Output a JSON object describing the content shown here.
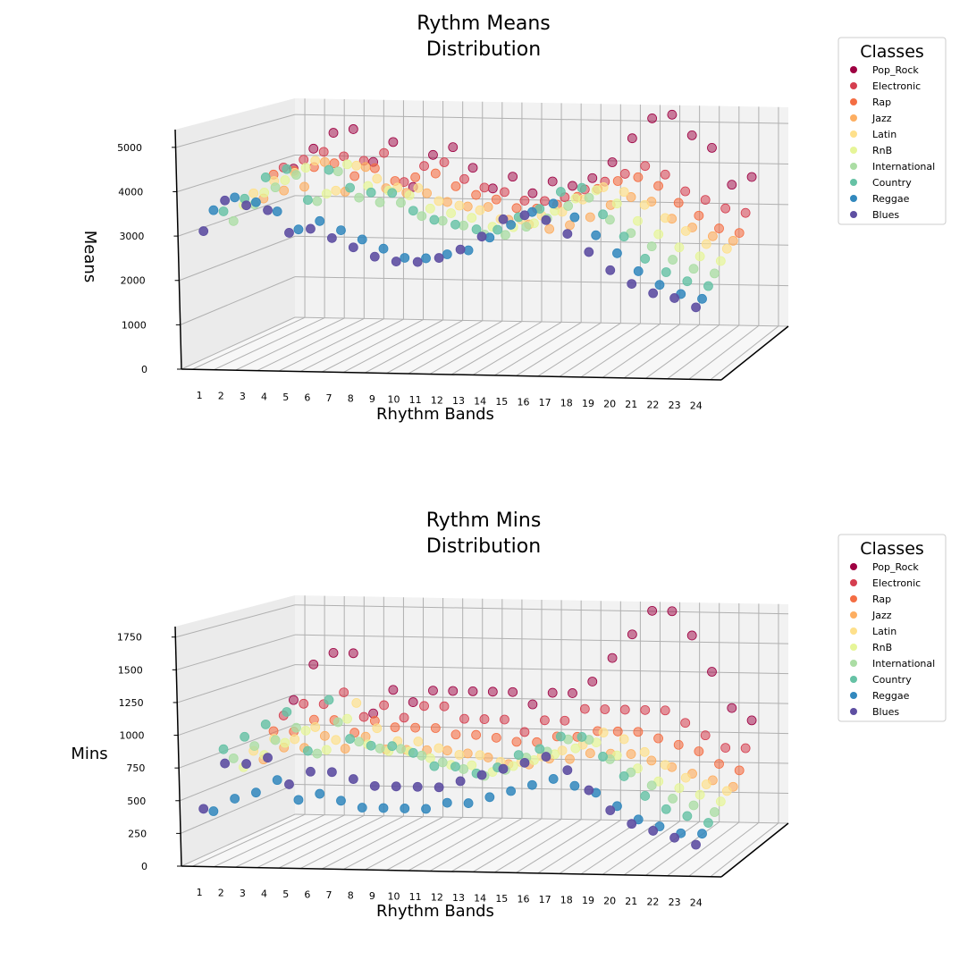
{
  "legend_title": "Classes",
  "classes": [
    {
      "name": "Pop_Rock",
      "color": "#9e0142"
    },
    {
      "name": "Electronic",
      "color": "#d53e4f"
    },
    {
      "name": "Rap",
      "color": "#f46d43"
    },
    {
      "name": "Jazz",
      "color": "#fdae61"
    },
    {
      "name": "Latin",
      "color": "#fee08b"
    },
    {
      "name": "RnB",
      "color": "#e6f598"
    },
    {
      "name": "International",
      "color": "#abdda4"
    },
    {
      "name": "Country",
      "color": "#66c2a5"
    },
    {
      "name": "Reggae",
      "color": "#3288bd"
    },
    {
      "name": "Blues",
      "color": "#5e4fa2"
    }
  ],
  "chart_data": [
    {
      "type": "scatter",
      "projection": "3d",
      "title": "Rythm Means\nDistribution",
      "xlabel": "Rhythm Bands",
      "ylabel": "Means",
      "x_ticks": [
        1,
        2,
        3,
        4,
        5,
        6,
        7,
        8,
        9,
        10,
        11,
        12,
        13,
        14,
        15,
        16,
        17,
        18,
        19,
        20,
        21,
        22,
        23,
        24
      ],
      "z_ticks": [
        0,
        1000,
        2000,
        3000,
        4000,
        5000
      ],
      "zlim": [
        0,
        5400
      ],
      "grid": true,
      "legend_position": "right",
      "series": [
        {
          "name": "Pop_Rock",
          "values": [
            3800,
            4300,
            4700,
            4800,
            4000,
            4500,
            3400,
            4200,
            4400,
            3900,
            3400,
            3700,
            3300,
            3600,
            3500,
            3700,
            4100,
            4700,
            5200,
            5300,
            4800,
            4500,
            3600,
            3800
          ]
        },
        {
          "name": "Electronic",
          "values": [
            3900,
            4100,
            4300,
            4200,
            4100,
            4300,
            3600,
            4000,
            4100,
            3700,
            3500,
            3400,
            3200,
            3200,
            3300,
            3500,
            3700,
            3900,
            4100,
            3900,
            3500,
            3300,
            3100,
            3000
          ]
        },
        {
          "name": "Rap",
          "values": [
            3800,
            3900,
            4000,
            4100,
            3800,
            4000,
            3700,
            3800,
            3900,
            3600,
            3400,
            3300,
            3100,
            3100,
            3200,
            3400,
            3600,
            3800,
            3900,
            3700,
            3300,
            3000,
            2700,
            2600
          ]
        },
        {
          "name": "Jazz",
          "values": [
            3300,
            3500,
            3600,
            4200,
            3500,
            4100,
            3600,
            3500,
            3500,
            3300,
            3200,
            3200,
            2900,
            2800,
            2700,
            2800,
            3000,
            3300,
            3500,
            3400,
            3000,
            2800,
            2600,
            2500
          ]
        },
        {
          "name": "Latin",
          "values": [
            3500,
            3800,
            4000,
            4300,
            3600,
            4200,
            3900,
            3700,
            3700,
            3400,
            3300,
            3200,
            3000,
            3000,
            3100,
            3200,
            3500,
            3800,
            3700,
            3400,
            3100,
            2800,
            2500,
            2400
          ]
        },
        {
          "name": "RnB",
          "values": [
            3300,
            3600,
            3900,
            4200,
            3600,
            4300,
            3800,
            3700,
            3600,
            3300,
            3200,
            3100,
            2900,
            2900,
            3000,
            3300,
            3600,
            3800,
            3500,
            3100,
            2800,
            2500,
            2300,
            2200
          ]
        },
        {
          "name": "International",
          "values": [
            3000,
            3400,
            3800,
            4100,
            3500,
            4200,
            3600,
            3500,
            3500,
            3200,
            3100,
            3000,
            2800,
            2800,
            3000,
            3200,
            3500,
            3700,
            3200,
            2900,
            2600,
            2300,
            2100,
            2000
          ]
        },
        {
          "name": "Country",
          "values": [
            3300,
            3600,
            4100,
            4300,
            3600,
            4300,
            3900,
            3800,
            3800,
            3400,
            3200,
            3100,
            3000,
            3000,
            3300,
            3500,
            3900,
            4000,
            3400,
            2900,
            2400,
            2100,
            1900,
            1800
          ]
        },
        {
          "name": "Reggae",
          "values": [
            3400,
            3700,
            3600,
            3400,
            3000,
            3200,
            3000,
            2800,
            2600,
            2400,
            2400,
            2500,
            2600,
            2900,
            3200,
            3500,
            3700,
            3400,
            3000,
            2600,
            2200,
            1900,
            1700,
            1600
          ]
        },
        {
          "name": "Blues",
          "values": [
            3000,
            3700,
            3600,
            3500,
            3000,
            3100,
            2900,
            2700,
            2500,
            2400,
            2400,
            2500,
            2700,
            3000,
            3400,
            3500,
            3400,
            3100,
            2700,
            2300,
            2000,
            1800,
            1700,
            1500
          ]
        }
      ]
    },
    {
      "type": "scatter",
      "projection": "3d",
      "title": "Rythm Mins\nDistribution",
      "xlabel": "Rhythm Bands",
      "ylabel": "Mins",
      "x_ticks": [
        1,
        2,
        3,
        4,
        5,
        6,
        7,
        8,
        9,
        10,
        11,
        12,
        13,
        14,
        15,
        16,
        17,
        18,
        19,
        20,
        21,
        22,
        23,
        24
      ],
      "z_ticks": [
        0,
        250,
        500,
        750,
        1000,
        1250,
        1500,
        1750
      ],
      "zlim": [
        0,
        1830
      ],
      "grid": true,
      "legend_position": "right",
      "series": [
        {
          "name": "Pop_Rock",
          "values": [
            1000,
            1300,
            1400,
            1400,
            900,
            1100,
            1000,
            1100,
            1100,
            1100,
            1100,
            1100,
            1000,
            1100,
            1100,
            1200,
            1400,
            1600,
            1800,
            1800,
            1600,
            1300,
            1000,
            900
          ]
        },
        {
          "name": "Electronic",
          "values": [
            900,
            1000,
            1000,
            1100,
            900,
            1000,
            900,
            1000,
            1000,
            900,
            900,
            900,
            800,
            900,
            900,
            1000,
            1000,
            1000,
            1000,
            1000,
            900,
            800,
            700,
            700
          ]
        },
        {
          "name": "Rap",
          "values": [
            800,
            800,
            900,
            900,
            800,
            900,
            850,
            850,
            850,
            800,
            800,
            780,
            750,
            750,
            800,
            800,
            850,
            850,
            850,
            800,
            750,
            700,
            600,
            550
          ]
        },
        {
          "name": "Jazz",
          "values": [
            600,
            700,
            700,
            800,
            700,
            800,
            700,
            700,
            700,
            700,
            680,
            650,
            600,
            600,
            650,
            650,
            700,
            700,
            700,
            650,
            600,
            550,
            500,
            450
          ]
        },
        {
          "name": "Latin",
          "values": [
            700,
            800,
            800,
            900,
            800,
            1100,
            900,
            800,
            800,
            750,
            700,
            700,
            650,
            650,
            700,
            750,
            800,
            900,
            850,
            750,
            650,
            550,
            500,
            450
          ]
        },
        {
          "name": "RnB",
          "values": [
            600,
            700,
            800,
            900,
            750,
            1000,
            800,
            750,
            750,
            700,
            650,
            650,
            600,
            650,
            700,
            750,
            800,
            850,
            750,
            650,
            550,
            500,
            450,
            400
          ]
        },
        {
          "name": "International",
          "values": [
            700,
            800,
            850,
            950,
            750,
            1000,
            850,
            800,
            800,
            750,
            700,
            650,
            600,
            650,
            750,
            800,
            900,
            900,
            750,
            650,
            550,
            450,
            400,
            350
          ]
        },
        {
          "name": "Country",
          "values": [
            800,
            900,
            1000,
            1100,
            800,
            1200,
            900,
            850,
            850,
            800,
            700,
            700,
            650,
            700,
            800,
            850,
            950,
            950,
            800,
            650,
            500,
            400,
            350,
            300
          ]
        },
        {
          "name": "Reggae",
          "values": [
            350,
            450,
            500,
            600,
            450,
            500,
            450,
            400,
            400,
            400,
            400,
            450,
            450,
            500,
            550,
            600,
            650,
            600,
            550,
            450,
            350,
            300,
            250,
            250
          ]
        },
        {
          "name": "Blues",
          "values": [
            400,
            750,
            750,
            800,
            600,
            700,
            700,
            650,
            600,
            600,
            600,
            600,
            650,
            700,
            750,
            800,
            850,
            750,
            600,
            450,
            350,
            300,
            250,
            200
          ]
        }
      ]
    }
  ]
}
